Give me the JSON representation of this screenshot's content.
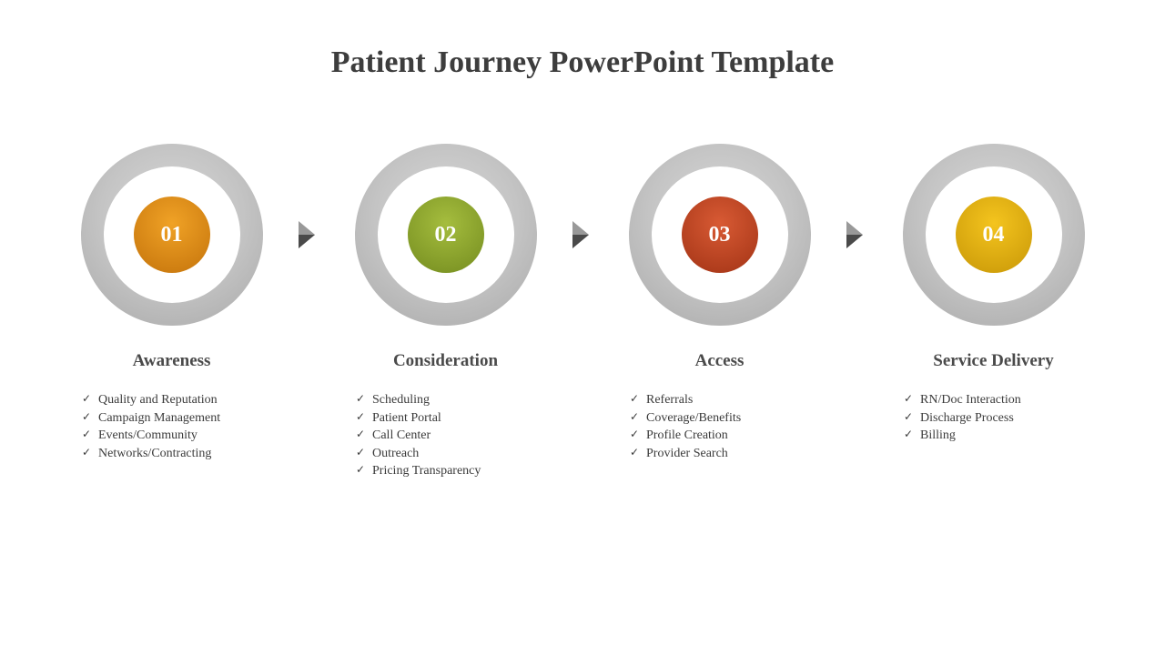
{
  "title": "Patient Journey PowerPoint Template",
  "title_color": "#3d3d3d",
  "title_fontsize": 34,
  "background_color": "#ffffff",
  "ring_outer_diameter": 200,
  "ring_inner_diameter": 150,
  "core_diameter": 84,
  "ring_gradient_top": "#d8d8d8",
  "ring_gradient_bottom": "#a8a8a8",
  "arrow_color_light": "#999999",
  "arrow_color_dark": "#4a4a4a",
  "step_title_color": "#4a4a4a",
  "step_title_fontsize": 19,
  "bullet_fontsize": 14,
  "bullet_color": "#3b3b3b",
  "steps": [
    {
      "number": "01",
      "title": "Awareness",
      "core_gradient_top": "#f0a226",
      "core_gradient_bottom": "#c4730b",
      "bullets": [
        "Quality and Reputation",
        "Campaign Management",
        "Events/Community",
        "Networks/Contracting"
      ]
    },
    {
      "number": "02",
      "title": "Consideration",
      "core_gradient_top": "#a5bd3e",
      "core_gradient_bottom": "#748c1f",
      "bullets": [
        "Scheduling",
        "Patient Portal",
        "Call Center",
        "Outreach",
        "Pricing Transparency"
      ]
    },
    {
      "number": "03",
      "title": "Access",
      "core_gradient_top": "#d85a34",
      "core_gradient_bottom": "#a23315",
      "bullets": [
        "Referrals",
        "Coverage/Benefits",
        "Profile Creation",
        "Provider Search"
      ]
    },
    {
      "number": "04",
      "title": "Service Delivery",
      "core_gradient_top": "#f4c41e",
      "core_gradient_bottom": "#c89707",
      "bullets": [
        "RN/Doc Interaction",
        "Discharge Process",
        "Billing"
      ]
    }
  ]
}
